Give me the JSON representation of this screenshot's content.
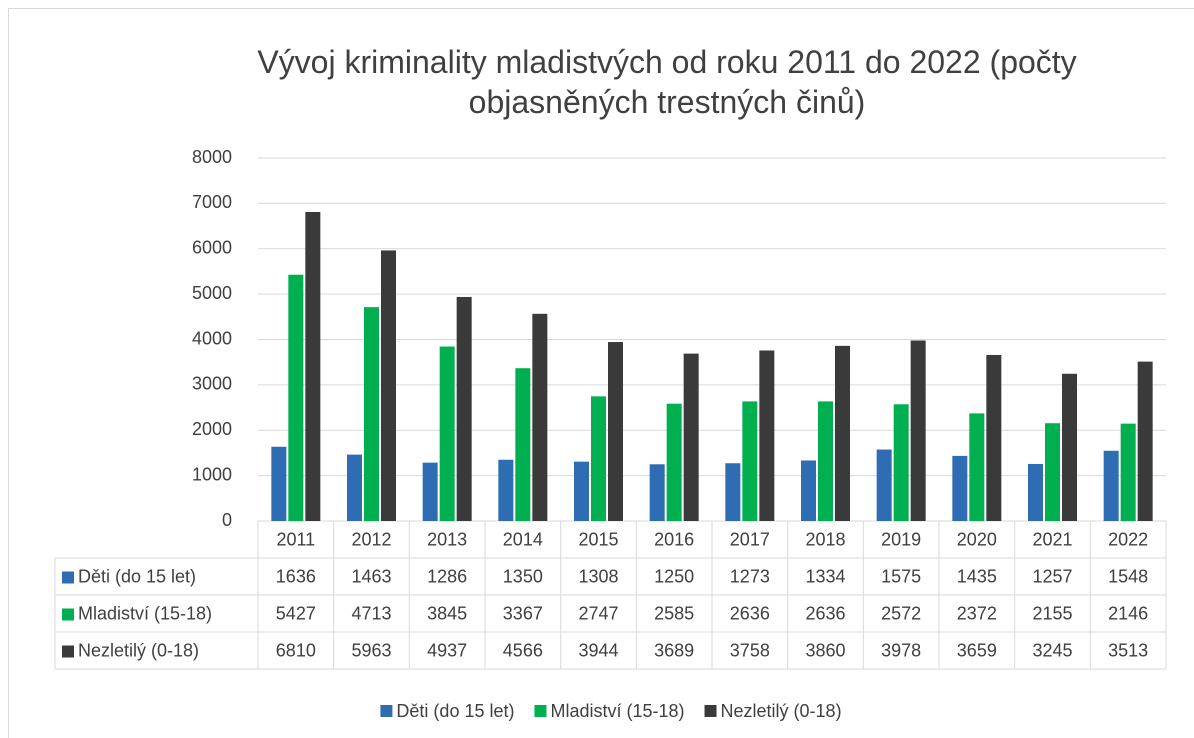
{
  "chart_data": {
    "type": "bar",
    "title": "Vývoj kriminality mladistvých od roku 2011 do 2022 (počty objasněných trestných činů)",
    "categories": [
      "2011",
      "2012",
      "2013",
      "2014",
      "2015",
      "2016",
      "2017",
      "2018",
      "2019",
      "2020",
      "2021",
      "2022"
    ],
    "series": [
      {
        "name": "Děti (do 15 let)",
        "color": "#2e6db4",
        "values": [
          1636,
          1463,
          1286,
          1350,
          1308,
          1250,
          1273,
          1334,
          1575,
          1435,
          1257,
          1548
        ]
      },
      {
        "name": "Mladiství (15-18)",
        "color": "#00b050",
        "values": [
          5427,
          4713,
          3845,
          3367,
          2747,
          2585,
          2636,
          2636,
          2572,
          2372,
          2155,
          2146
        ]
      },
      {
        "name": "Nezletilý (0-18)",
        "color": "#3a3a3a",
        "values": [
          6810,
          5963,
          4937,
          4566,
          3944,
          3689,
          3758,
          3860,
          3978,
          3659,
          3245,
          3513
        ]
      }
    ],
    "ylim": [
      0,
      8000
    ],
    "yticks": [
      0,
      1000,
      2000,
      3000,
      4000,
      5000,
      6000,
      7000,
      8000
    ],
    "grid": true,
    "legend": "bottom",
    "data_table": true
  }
}
